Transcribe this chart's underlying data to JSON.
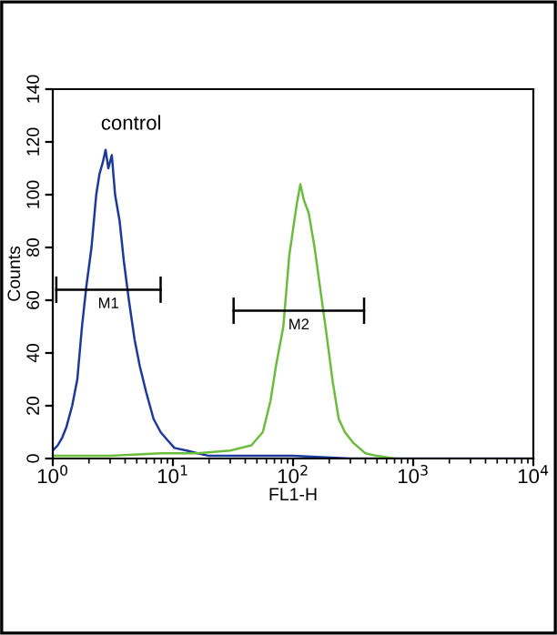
{
  "chart_data": {
    "type": "line",
    "xlabel": "FL1-H",
    "ylabel": "Counts",
    "log": "x",
    "xlim": [
      1,
      10000
    ],
    "ylim": [
      0,
      140
    ],
    "xticks": [
      {
        "value": 1,
        "label": "10$^{0}$"
      },
      {
        "value": 10,
        "label": "10$^{1}$"
      },
      {
        "value": 100,
        "label": "10$^{2}$"
      },
      {
        "value": 1000,
        "label": "10$^{3}$"
      },
      {
        "value": 10000,
        "label": "10$^{4}$"
      }
    ],
    "yticks": [
      0,
      20,
      40,
      60,
      80,
      100,
      120,
      140
    ],
    "grid": false,
    "marker": "none",
    "line_style": "solid",
    "annotations": [
      "control"
    ],
    "series": [
      {
        "color": "#1c3a9c",
        "x": [
          1.0,
          1.1,
          1.2,
          1.3,
          1.45,
          1.6,
          1.75,
          1.9,
          2.1,
          2.3,
          2.45,
          2.6,
          2.75,
          2.9,
          3.1,
          3.3,
          3.6,
          3.9,
          4.3,
          4.8,
          5.3,
          6.0,
          6.9,
          7.9,
          9.0,
          10.3,
          13.0,
          16.0,
          20.0,
          30.0,
          50.0,
          100.0,
          300.0,
          1000.0,
          10000.0
        ],
        "values": [
          3,
          5,
          8,
          12,
          20,
          30,
          50,
          65,
          80,
          100,
          108,
          112,
          117,
          110,
          115,
          100,
          90,
          75,
          60,
          45,
          35,
          25,
          15,
          10,
          7,
          4,
          3,
          2,
          1,
          1,
          1,
          1,
          0,
          0,
          0
        ]
      },
      {
        "color": "#6cbc3c",
        "x": [
          1.0,
          3.0,
          8.0,
          16.0,
          30.0,
          45.0,
          56.0,
          65.0,
          72.0,
          83.0,
          93.0,
          107.0,
          115.0,
          123.0,
          135.0,
          151.0,
          170.0,
          190.0,
          214.0,
          240.0,
          270.0,
          316.0,
          400.0,
          500.0,
          700.0
        ],
        "values": [
          1,
          1,
          2,
          2,
          3,
          5,
          10,
          22,
          35,
          50,
          77,
          96,
          104,
          98,
          93,
          80,
          63,
          47,
          29,
          15,
          10,
          6,
          2,
          1,
          0
        ]
      },
      {
        "name": "M1",
        "color": "#000000",
        "x": [
          1.07,
          7.9
        ],
        "values": [
          64,
          64
        ],
        "errors": [
          5,
          5
        ]
      },
      {
        "name": "M2",
        "color": "#000000",
        "x": [
          32,
          390
        ],
        "values": [
          56,
          56
        ],
        "errors": [
          5,
          5
        ]
      }
    ]
  }
}
